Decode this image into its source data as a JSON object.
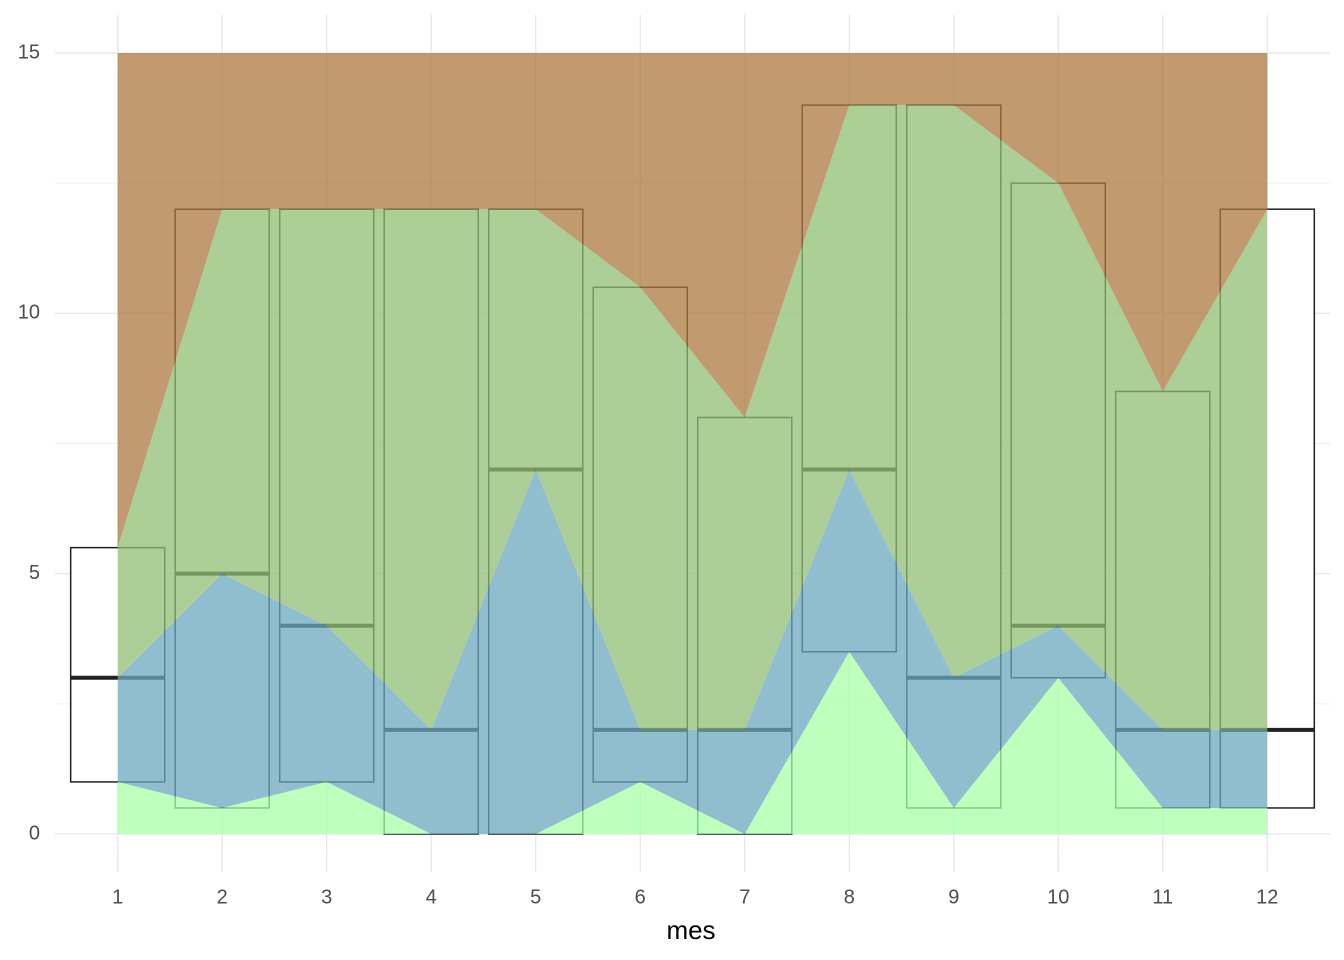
{
  "chart_data": {
    "type": "boxplot",
    "x": [
      1,
      2,
      3,
      4,
      5,
      6,
      7,
      8,
      9,
      10,
      11,
      12
    ],
    "min": [
      0,
      0,
      0,
      0,
      0,
      0,
      0,
      0,
      0,
      0,
      0,
      0
    ],
    "lower": [
      1,
      0.5,
      1,
      0,
      0,
      1,
      0,
      3.5,
      0.5,
      3,
      0.5,
      0.5
    ],
    "median": [
      3,
      5,
      4,
      2,
      7,
      2,
      2,
      7,
      3,
      4,
      2,
      2
    ],
    "upper": [
      5.5,
      12,
      12,
      12,
      12,
      10.5,
      8,
      14,
      14,
      12.5,
      8.5,
      12
    ],
    "max": [
      15,
      15,
      15,
      15,
      15,
      15,
      15,
      15,
      15,
      15,
      15,
      15
    ],
    "band_colors": [
      "#a8ffa8",
      "#6ba8bf",
      "#90bf76",
      "#ac783f"
    ],
    "xlabel": "mes",
    "xlim": [
      0.4,
      12.6
    ],
    "xticks": [
      1,
      2,
      3,
      4,
      5,
      6,
      7,
      8,
      9,
      10,
      11,
      12
    ],
    "ylim": [
      -0.73,
      15.73
    ],
    "yticks": [
      0,
      5,
      10,
      15
    ],
    "grid": true
  }
}
